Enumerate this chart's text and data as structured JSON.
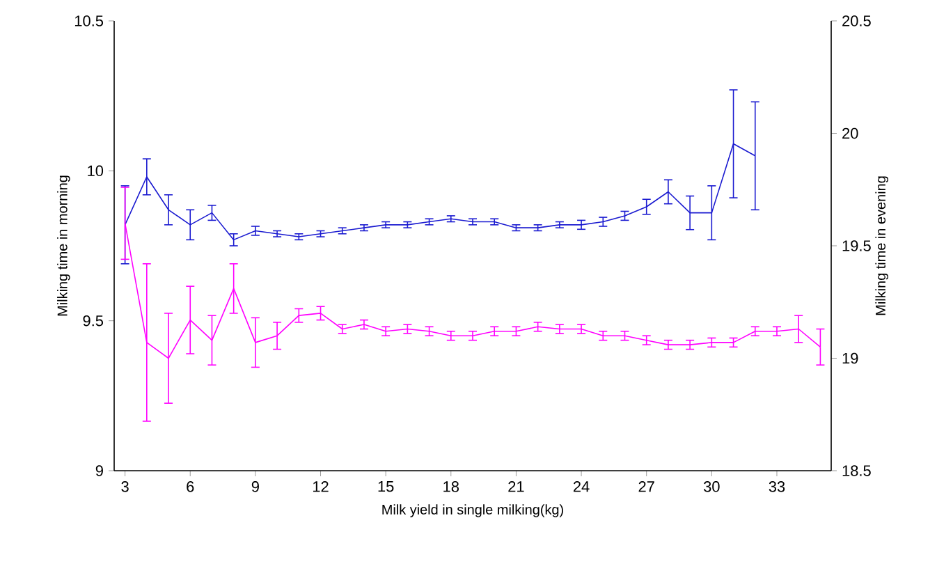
{
  "chart_data": {
    "type": "line",
    "xlabel": "Milk yield in single milking(kg)",
    "ylabel": "Milking time in morning",
    "y2label": "Milking time in evening",
    "xlim": [
      2.5,
      35.5
    ],
    "xticks": [
      3,
      6,
      9,
      12,
      15,
      18,
      21,
      24,
      27,
      30,
      33
    ],
    "ylim": [
      9,
      10.5
    ],
    "yticks": [
      9,
      {
        "value": 9.5,
        "label": "9.5"
      },
      10,
      {
        "value": 10.5,
        "label": "10.5"
      }
    ],
    "y2lim": [
      18.5,
      20.5
    ],
    "y2ticks": [
      {
        "value": 18.5,
        "label": "18.5"
      },
      19,
      {
        "value": 19.5,
        "label": "19.5"
      },
      20,
      {
        "value": 20.5,
        "label": "20.5"
      }
    ],
    "grid": false,
    "marker": "none",
    "line_style": "solid",
    "series": [
      {
        "color": "#1a1ad0",
        "x": [
          3,
          4,
          5,
          6,
          7,
          8,
          9,
          10,
          11,
          12,
          13,
          14,
          15,
          16,
          17,
          18,
          19,
          20,
          21,
          22,
          23,
          24,
          25,
          26,
          27,
          28,
          29,
          30,
          31,
          32
        ],
        "values": [
          9.82,
          9.98,
          9.87,
          9.82,
          9.86,
          9.77,
          9.8,
          9.79,
          9.78,
          9.79,
          9.8,
          9.81,
          9.82,
          9.82,
          9.83,
          9.84,
          9.83,
          9.83,
          9.81,
          9.81,
          9.82,
          9.82,
          9.83,
          9.85,
          9.88,
          9.93,
          9.86,
          9.86,
          10.09,
          10.05
        ],
        "errors": [
          0.13,
          0.06,
          0.05,
          0.05,
          0.025,
          0.02,
          0.015,
          0.01,
          0.01,
          0.01,
          0.01,
          0.01,
          0.01,
          0.01,
          0.01,
          0.01,
          0.01,
          0.01,
          0.01,
          0.01,
          0.01,
          0.015,
          0.015,
          0.015,
          0.025,
          0.04,
          0.056,
          0.09,
          0.18,
          0.18
        ]
      },
      {
        "color": "#ff00ff",
        "axis": "y2",
        "x": [
          3,
          4,
          5,
          6,
          7,
          8,
          9,
          10,
          11,
          12,
          13,
          14,
          15,
          16,
          17,
          18,
          19,
          20,
          21,
          22,
          23,
          24,
          25,
          26,
          27,
          28,
          29,
          30,
          31,
          32,
          33,
          34,
          35
        ],
        "values": [
          19.6,
          19.07,
          19.0,
          19.17,
          19.08,
          19.31,
          19.07,
          19.1,
          19.19,
          19.2,
          19.13,
          19.15,
          19.12,
          19.13,
          19.12,
          19.1,
          19.1,
          19.12,
          19.12,
          19.14,
          19.13,
          19.13,
          19.1,
          19.1,
          19.08,
          19.06,
          19.06,
          19.07,
          19.07,
          19.12,
          19.12,
          19.13,
          19.05
        ],
        "errors": [
          0.16,
          0.35,
          0.2,
          0.15,
          0.11,
          0.11,
          0.11,
          0.06,
          0.03,
          0.03,
          0.02,
          0.02,
          0.02,
          0.02,
          0.02,
          0.02,
          0.02,
          0.02,
          0.02,
          0.02,
          0.02,
          0.02,
          0.02,
          0.02,
          0.02,
          0.02,
          0.02,
          0.02,
          0.02,
          0.02,
          0.02,
          0.06,
          0.08
        ]
      }
    ]
  }
}
